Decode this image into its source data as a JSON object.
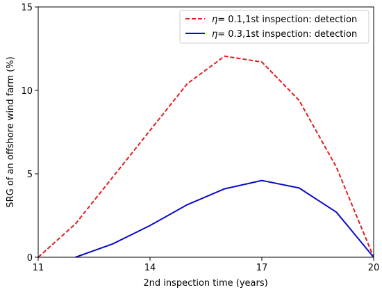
{
  "chart_data": {
    "type": "line",
    "xlabel": "2nd inspection time (years)",
    "ylabel": "SRG of an offshore wind farm (%)",
    "xlim": [
      11,
      20
    ],
    "ylim": [
      0,
      15
    ],
    "xticks": [
      "11",
      "14",
      "17",
      "20"
    ],
    "yticks": [
      "0",
      "5",
      "10",
      "15"
    ],
    "grid": false,
    "legend_position": "top-right",
    "series": [
      {
        "name_symbol": "η",
        "name": "= 0.1,1st inspection: detection",
        "color": "#e31a1c",
        "style": "dashed",
        "x": [
          11,
          12,
          13,
          14,
          15,
          16,
          17,
          18,
          19,
          20
        ],
        "y": [
          0,
          2.0,
          4.8,
          7.6,
          10.4,
          12.05,
          11.7,
          9.4,
          5.4,
          0
        ]
      },
      {
        "name_symbol": "η",
        "name": "= 0.3,1st inspection: detection",
        "color": "#0a0acd",
        "style": "solid",
        "x": [
          12,
          13,
          14,
          15,
          16,
          17,
          18,
          19,
          20
        ],
        "y": [
          0,
          0.8,
          1.9,
          3.15,
          4.1,
          4.6,
          4.15,
          2.7,
          0
        ]
      }
    ]
  }
}
